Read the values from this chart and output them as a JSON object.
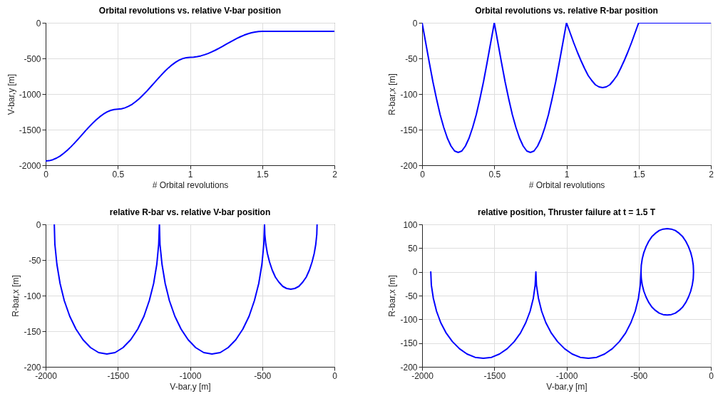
{
  "chart_data": [
    {
      "type": "line",
      "title": "Orbital revolutions vs. relative V-bar position",
      "xlabel": "# Orbital revolutions",
      "ylabel": "V-bar,y [m]",
      "xlim": [
        0,
        2
      ],
      "xticks": [
        0,
        0.5,
        1,
        1.5,
        2
      ],
      "ylim": [
        -2000,
        0
      ],
      "yticks": [
        -2000,
        -1500,
        -1000,
        -500,
        0
      ],
      "grid": true,
      "series": [
        {
          "color": "#0000ff",
          "x": [
            0,
            0.025,
            0.05,
            0.075,
            0.1,
            0.125,
            0.15,
            0.175,
            0.2,
            0.225,
            0.25,
            0.275,
            0.3,
            0.325,
            0.35,
            0.375,
            0.4,
            0.425,
            0.45,
            0.475,
            0.5,
            0.525,
            0.55,
            0.575,
            0.6,
            0.625,
            0.65,
            0.675,
            0.7,
            0.725,
            0.75,
            0.775,
            0.8,
            0.825,
            0.85,
            0.875,
            0.9,
            0.925,
            0.95,
            0.975,
            1,
            1.025,
            1.05,
            1.075,
            1.1,
            1.125,
            1.15,
            1.175,
            1.2,
            1.225,
            1.25,
            1.275,
            1.3,
            1.325,
            1.35,
            1.375,
            1.4,
            1.425,
            1.45,
            1.475,
            1.5,
            2
          ],
          "values": [
            -1940,
            -1936,
            -1922,
            -1900,
            -1871,
            -1833,
            -1790,
            -1741,
            -1689,
            -1633,
            -1576,
            -1519,
            -1464,
            -1411,
            -1362,
            -1319,
            -1282,
            -1252,
            -1230,
            -1217,
            -1212,
            -1208,
            -1194,
            -1172,
            -1143,
            -1105,
            -1062,
            -1013,
            -961,
            -905,
            -848,
            -791,
            -736,
            -683,
            -634,
            -591,
            -554,
            -524,
            -502,
            -489,
            -484,
            -482,
            -475,
            -464,
            -449,
            -431,
            -409,
            -385,
            -358,
            -331,
            -302,
            -274,
            -246,
            -219,
            -195,
            -173,
            -155,
            -140,
            -129,
            -122,
            -120,
            -120
          ]
        }
      ]
    },
    {
      "type": "line",
      "title": "Orbital revolutions vs. relative R-bar position",
      "xlabel": "# Orbital revolutions",
      "ylabel": "R-bar,x [m]",
      "xlim": [
        0,
        2
      ],
      "xticks": [
        0,
        0.5,
        1,
        1.5,
        2
      ],
      "ylim": [
        -200,
        0
      ],
      "yticks": [
        -200,
        -150,
        -100,
        -50,
        0
      ],
      "grid": true,
      "series": [
        {
          "color": "#0000ff",
          "x": [
            0,
            0.025,
            0.05,
            0.075,
            0.1,
            0.125,
            0.15,
            0.175,
            0.2,
            0.225,
            0.25,
            0.275,
            0.3,
            0.325,
            0.35,
            0.375,
            0.4,
            0.425,
            0.45,
            0.475,
            0.5,
            0.525,
            0.55,
            0.575,
            0.6,
            0.625,
            0.65,
            0.675,
            0.7,
            0.725,
            0.75,
            0.775,
            0.8,
            0.825,
            0.85,
            0.875,
            0.9,
            0.925,
            0.95,
            0.975,
            1,
            1.025,
            1.05,
            1.075,
            1.1,
            1.125,
            1.15,
            1.175,
            1.2,
            1.225,
            1.25,
            1.275,
            1.3,
            1.325,
            1.35,
            1.375,
            1.4,
            1.425,
            1.45,
            1.475,
            1.5,
            2
          ],
          "values": [
            0,
            -28,
            -56,
            -83,
            -107,
            -129,
            -147,
            -162,
            -173,
            -180,
            -182,
            -180,
            -173,
            -162,
            -147,
            -129,
            -107,
            -83,
            -56,
            -28,
            0,
            -28,
            -56,
            -83,
            -107,
            -129,
            -147,
            -162,
            -173,
            -180,
            -182,
            -180,
            -173,
            -162,
            -147,
            -129,
            -107,
            -83,
            -56,
            -28,
            0,
            -14,
            -28,
            -41,
            -53,
            -64,
            -74,
            -81,
            -87,
            -90,
            -91,
            -90,
            -87,
            -81,
            -74,
            -64,
            -53,
            -41,
            -28,
            -14,
            0,
            0
          ]
        }
      ]
    },
    {
      "type": "line",
      "title": "relative R-bar vs. relative V-bar position",
      "xlabel": "V-bar,y [m]",
      "ylabel": "R-bar,x [m]",
      "xlim": [
        -2000,
        0
      ],
      "xticks": [
        -2000,
        -1500,
        -1000,
        -500,
        0
      ],
      "ylim": [
        -200,
        0
      ],
      "yticks": [
        -200,
        -150,
        -100,
        -50,
        0
      ],
      "grid": true,
      "series": [
        {
          "color": "#0000ff",
          "x": [
            -1940,
            -1936,
            -1922,
            -1900,
            -1871,
            -1833,
            -1790,
            -1741,
            -1689,
            -1633,
            -1576,
            -1519,
            -1464,
            -1411,
            -1362,
            -1319,
            -1282,
            -1252,
            -1230,
            -1217,
            -1212,
            -1208,
            -1194,
            -1172,
            -1143,
            -1105,
            -1062,
            -1013,
            -961,
            -905,
            -848,
            -791,
            -736,
            -683,
            -634,
            -591,
            -554,
            -524,
            -502,
            -489,
            -484,
            -482,
            -475,
            -464,
            -449,
            -431,
            -409,
            -385,
            -358,
            -331,
            -302,
            -274,
            -246,
            -219,
            -195,
            -173,
            -155,
            -140,
            -129,
            -122,
            -120
          ],
          "values": [
            0,
            -28,
            -56,
            -83,
            -107,
            -129,
            -147,
            -162,
            -173,
            -180,
            -182,
            -180,
            -173,
            -162,
            -147,
            -129,
            -107,
            -83,
            -56,
            -28,
            0,
            -28,
            -56,
            -83,
            -107,
            -129,
            -147,
            -162,
            -173,
            -180,
            -182,
            -180,
            -173,
            -162,
            -147,
            -129,
            -107,
            -83,
            -56,
            -28,
            0,
            -14,
            -28,
            -41,
            -53,
            -64,
            -74,
            -81,
            -87,
            -90,
            -91,
            -90,
            -87,
            -81,
            -74,
            -64,
            -53,
            -41,
            -28,
            -14,
            0
          ]
        }
      ]
    },
    {
      "type": "line",
      "title": "relative position, Thruster failure at t = 1.5 T",
      "xlabel": "V-bar,y [m]",
      "ylabel": "R-bar,x [m]",
      "xlim": [
        -2000,
        0
      ],
      "xticks": [
        -2000,
        -1500,
        -1000,
        -500,
        0
      ],
      "ylim": [
        -200,
        100
      ],
      "yticks": [
        -200,
        -150,
        -100,
        -50,
        0,
        50,
        100
      ],
      "grid": true,
      "series": [
        {
          "color": "#0000ff",
          "x": [
            -1940,
            -1936,
            -1922,
            -1900,
            -1871,
            -1833,
            -1790,
            -1741,
            -1689,
            -1633,
            -1576,
            -1519,
            -1464,
            -1411,
            -1362,
            -1319,
            -1282,
            -1252,
            -1230,
            -1217,
            -1212,
            -1208,
            -1194,
            -1172,
            -1143,
            -1105,
            -1062,
            -1013,
            -961,
            -905,
            -848,
            -791,
            -736,
            -683,
            -634,
            -591,
            -554,
            -524,
            -502,
            -489,
            -484,
            -482,
            -475,
            -464,
            -449,
            -431,
            -409,
            -385,
            -358,
            -331,
            -302,
            -274,
            -246,
            -219,
            -195,
            -173,
            -155,
            -140,
            -129,
            -122,
            -120,
            -122,
            -129,
            -140,
            -155,
            -173,
            -195,
            -219,
            -246,
            -274,
            -302,
            -331,
            -358,
            -385,
            -409,
            -431,
            -449,
            -464,
            -475,
            -482,
            -484
          ],
          "values": [
            0,
            -28,
            -56,
            -83,
            -107,
            -129,
            -147,
            -162,
            -173,
            -180,
            -182,
            -180,
            -173,
            -162,
            -147,
            -129,
            -107,
            -83,
            -56,
            -28,
            0,
            -28,
            -56,
            -83,
            -107,
            -129,
            -147,
            -162,
            -173,
            -180,
            -182,
            -180,
            -173,
            -162,
            -147,
            -129,
            -107,
            -83,
            -56,
            -28,
            0,
            -14,
            -28,
            -41,
            -53,
            -64,
            -74,
            -81,
            -87,
            -90,
            -91,
            -90,
            -87,
            -81,
            -74,
            -64,
            -53,
            -41,
            -28,
            -14,
            0,
            14,
            28,
            41,
            53,
            64,
            74,
            81,
            87,
            90,
            91,
            90,
            87,
            81,
            74,
            64,
            53,
            41,
            28,
            14,
            0
          ]
        }
      ]
    }
  ]
}
